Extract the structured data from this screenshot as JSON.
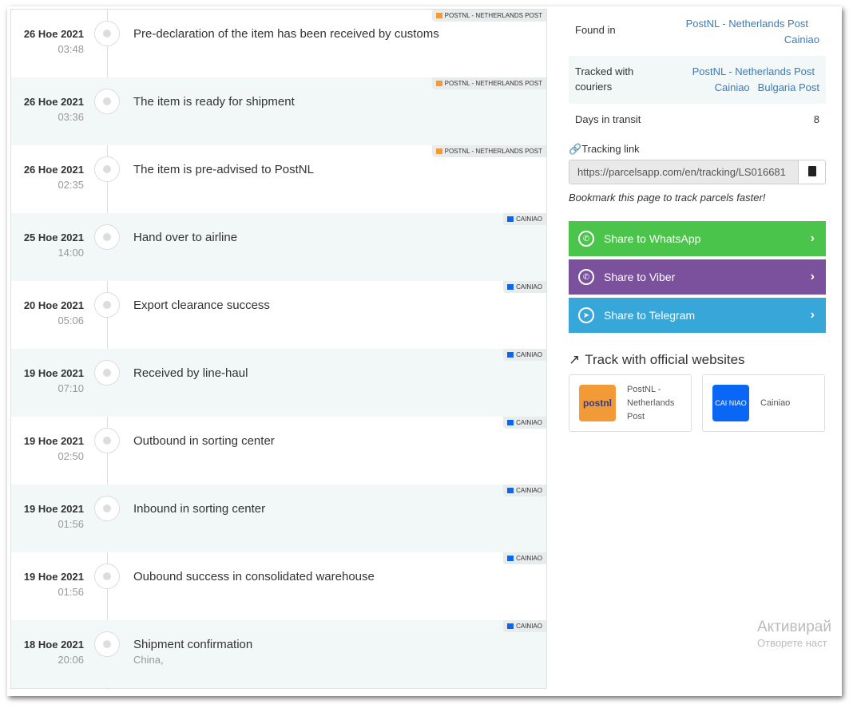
{
  "events": [
    {
      "date": "26 Ное 2021",
      "time": "03:48",
      "text": "Pre-declaration of the item has been received by customs",
      "carrier": "POSTNL - NETHERLANDS POST",
      "location": ""
    },
    {
      "date": "26 Ное 2021",
      "time": "03:36",
      "text": "The item is ready for shipment",
      "carrier": "POSTNL - NETHERLANDS POST",
      "location": ""
    },
    {
      "date": "26 Ное 2021",
      "time": "02:35",
      "text": "The item is pre-advised to PostNL",
      "carrier": "POSTNL - NETHERLANDS POST",
      "location": ""
    },
    {
      "date": "25 Ное 2021",
      "time": "14:00",
      "text": "Hand over to airline",
      "carrier": "CAINIAO",
      "location": ""
    },
    {
      "date": "20 Ное 2021",
      "time": "05:06",
      "text": "Export clearance success",
      "carrier": "CAINIAO",
      "location": ""
    },
    {
      "date": "19 Ное 2021",
      "time": "07:10",
      "text": "Received by line-haul",
      "carrier": "CAINIAO",
      "location": ""
    },
    {
      "date": "19 Ное 2021",
      "time": "02:50",
      "text": "Outbound in sorting center",
      "carrier": "CAINIAO",
      "location": ""
    },
    {
      "date": "19 Ное 2021",
      "time": "01:56",
      "text": "Inbound in sorting center",
      "carrier": "CAINIAO",
      "location": ""
    },
    {
      "date": "19 Ное 2021",
      "time": "01:56",
      "text": "Oubound success in consolidated warehouse",
      "carrier": "CAINIAO",
      "location": ""
    },
    {
      "date": "18 Ное 2021",
      "time": "20:06",
      "text": "Shipment confirmation",
      "carrier": "CAINIAO",
      "location": "China,"
    }
  ],
  "info": {
    "found_in_label": "Found in",
    "found_in": [
      "PostNL - Netherlands Post",
      "Cainiao"
    ],
    "tracked_label": "Tracked with couriers",
    "tracked": [
      "PostNL - Netherlands Post",
      "Cainiao",
      "Bulgaria Post"
    ],
    "days_label": "Days in transit",
    "days": "8"
  },
  "tracking": {
    "label": "Tracking link",
    "url": "https://parcelsapp.com/en/tracking/LS016681",
    "note": "Bookmark this page to track parcels faster!"
  },
  "share": [
    {
      "label": "Share to WhatsApp",
      "color": "#4ac44a",
      "icon": "whatsapp-icon"
    },
    {
      "label": "Share to Viber",
      "color": "#7b519d",
      "icon": "viber-icon"
    },
    {
      "label": "Share to Telegram",
      "color": "#37a6d8",
      "icon": "telegram-icon"
    }
  ],
  "official": {
    "title": "Track with official websites",
    "sites": [
      {
        "name": "PostNL - Netherlands Post",
        "logo": "postnl",
        "color": "#f39a38"
      },
      {
        "name": "Cainiao",
        "logo": "CAI NIAO",
        "color": "#0a67f6"
      }
    ]
  },
  "watermark": {
    "line1": "Активирай",
    "line2": "Отворете наст"
  }
}
